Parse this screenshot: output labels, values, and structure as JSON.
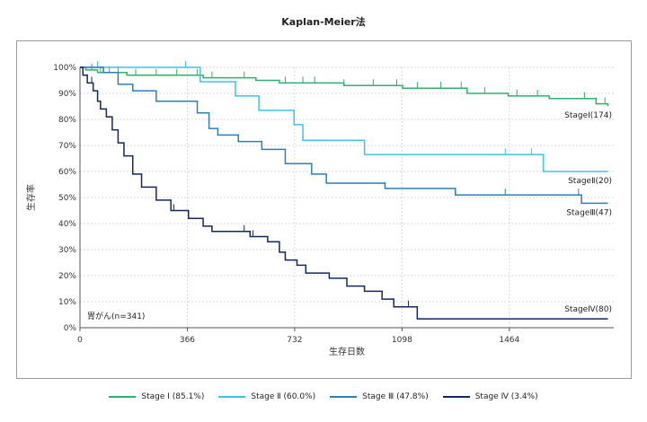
{
  "chart_data": {
    "type": "line",
    "title": "Kaplan-Meier法",
    "xlabel": "生存日数",
    "ylabel": "生存率",
    "xlim": [
      0,
      1820
    ],
    "ylim": [
      0,
      100
    ],
    "x_ticks": [
      0,
      366,
      732,
      1098,
      1464
    ],
    "x_tick_labels": [
      "0",
      "366",
      "732",
      "1098",
      "1464"
    ],
    "y_ticks": [
      0,
      10,
      20,
      30,
      40,
      50,
      60,
      70,
      80,
      90,
      100
    ],
    "y_tick_labels": [
      "0%",
      "10%",
      "20%",
      "30%",
      "40%",
      "50%",
      "60%",
      "70%",
      "80%",
      "90%",
      "100%"
    ],
    "grid": true,
    "legend_position": "bottom",
    "annotation": "胃がん(n=341)",
    "series": [
      {
        "name": "Stage Ⅰ (85.1%)",
        "label": "StageⅠ(174)",
        "color": "#2db26a",
        "x": [
          0,
          20,
          60,
          160,
          420,
          600,
          680,
          900,
          1100,
          1320,
          1460,
          1600,
          1760,
          1800
        ],
        "y": [
          100,
          99,
          98,
          97,
          96,
          95,
          94,
          93,
          92,
          90,
          89,
          88,
          86,
          85.1
        ],
        "censor_x": [
          40,
          70,
          100,
          130,
          190,
          260,
          330,
          400,
          450,
          560,
          700,
          760,
          800,
          900,
          1000,
          1080,
          1150,
          1230,
          1300,
          1380,
          1490,
          1560,
          1720,
          1760,
          1790
        ]
      },
      {
        "name": "Stage Ⅱ (60.0%)",
        "label": "StageⅡ(20)",
        "color": "#3bc4e8",
        "x": [
          0,
          410,
          530,
          610,
          730,
          760,
          970,
          1580,
          1800
        ],
        "y": [
          100,
          94.5,
          89,
          83.5,
          78,
          72,
          66.5,
          60,
          60
        ],
        "censor_x": [
          60,
          360,
          1450,
          1540
        ]
      },
      {
        "name": "Stage Ⅲ (47.8%)",
        "label": "StageⅢ(47)",
        "color": "#2c7fb8",
        "x": [
          0,
          80,
          130,
          180,
          260,
          400,
          440,
          470,
          540,
          620,
          700,
          790,
          840,
          1040,
          1280,
          1710,
          1800
        ],
        "y": [
          100,
          98,
          93.5,
          91,
          87,
          82.5,
          76.5,
          74,
          71.5,
          68.5,
          63,
          59,
          55.5,
          53.5,
          51,
          47.8,
          47.8
        ],
        "censor_x": [
          700,
          1040,
          1450,
          1700
        ]
      },
      {
        "name": "Stage Ⅳ (3.4%)",
        "label": "StageⅣ(80)",
        "color": "#15285c",
        "x": [
          0,
          10,
          25,
          45,
          60,
          70,
          90,
          110,
          130,
          150,
          180,
          210,
          260,
          310,
          370,
          420,
          450,
          580,
          640,
          680,
          700,
          740,
          770,
          850,
          910,
          970,
          1030,
          1070,
          1150,
          1800
        ],
        "y": [
          100,
          97,
          94,
          91,
          87,
          84,
          81,
          76,
          71,
          66,
          59,
          54,
          49,
          45,
          42,
          39,
          37,
          35,
          33,
          29,
          26,
          24,
          21,
          19,
          16,
          14,
          11,
          8,
          3.4,
          3.4
        ],
        "censor_x": [
          40,
          320,
          560,
          590,
          680,
          1120
        ]
      }
    ]
  }
}
